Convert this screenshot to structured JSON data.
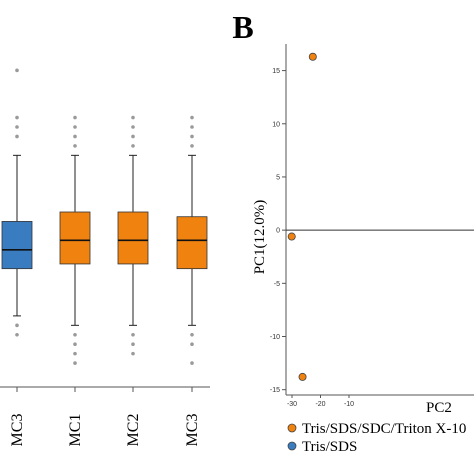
{
  "panel_label": "B",
  "colors": {
    "orange": "#f0820f",
    "blue": "#3a7cc0",
    "outlier": "#9a9a9a",
    "axis": "#555555",
    "zero_line": "#333333"
  },
  "chart_data": [
    {
      "type": "box",
      "categories": [
        "MC3",
        "MC1",
        "MC2",
        "MC3"
      ],
      "series_colors": [
        "blue",
        "orange",
        "orange",
        "orange"
      ],
      "boxes": [
        {
          "category": "MC3",
          "whisker_low": -8,
          "q1": -3,
          "median": -1,
          "q3": 2,
          "whisker_high": 9,
          "outliers": [
            -9,
            -10,
            11,
            12,
            13,
            18
          ]
        },
        {
          "category": "MC1",
          "whisker_low": -9,
          "q1": -2.5,
          "median": 0,
          "q3": 3,
          "whisker_high": 9,
          "outliers": [
            -10,
            -11,
            -12,
            -13,
            10,
            11,
            12,
            13
          ]
        },
        {
          "category": "MC2",
          "whisker_low": -9,
          "q1": -2.5,
          "median": 0,
          "q3": 3,
          "whisker_high": 9,
          "outliers": [
            -10,
            -11,
            -12,
            10,
            11,
            12,
            13
          ]
        },
        {
          "category": "MC3",
          "whisker_low": -9,
          "q1": -3,
          "median": 0,
          "q3": 2.5,
          "whisker_high": 9,
          "outliers": [
            -10,
            -11,
            -13,
            10,
            11,
            12,
            13
          ]
        }
      ]
    },
    {
      "type": "scatter",
      "xlabel": "PC2",
      "ylabel": "PC1(12.0%)",
      "xticks": [
        -30,
        -20,
        -10
      ],
      "yticks": [
        15,
        10,
        5,
        0,
        -5,
        -10,
        -15
      ],
      "xlim": [
        -31,
        -9
      ],
      "ylim": [
        -15.5,
        17.5
      ],
      "series": [
        {
          "name": "Tris/SDS/SDC/Triton X-10",
          "color": "orange",
          "points": [
            [
              -22.7,
              16.3
            ],
            [
              -30.1,
              -0.6
            ],
            [
              -26.3,
              -13.8
            ]
          ]
        },
        {
          "name": "Tris/SDS",
          "color": "blue",
          "points": []
        }
      ]
    }
  ]
}
